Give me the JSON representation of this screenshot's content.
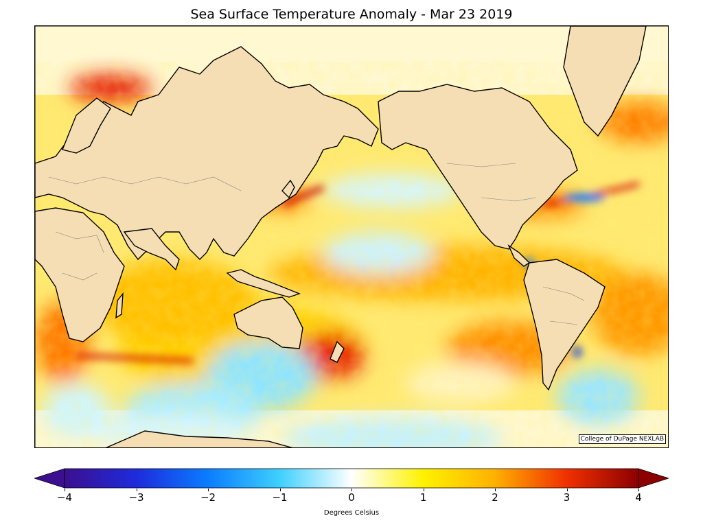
{
  "title": "Sea Surface Temperature Anomaly - Mar 23 2019",
  "credit": "College of DuPage NEXLAB",
  "colorbar": {
    "label": "Degrees Celsius",
    "ticks": [
      "−4",
      "−3",
      "−2",
      "−1",
      "0",
      "1",
      "2",
      "3",
      "4"
    ],
    "min": -4,
    "max": 4,
    "stops": [
      "#3b0f8f",
      "#1e2bdc",
      "#0a7dff",
      "#3fd0ff",
      "#ffffff",
      "#fff200",
      "#ffb000",
      "#f03000",
      "#8c0000"
    ]
  },
  "map": {
    "land_color": "#f5deb3",
    "coast_color": "#000000",
    "border_color": "#808080"
  }
}
